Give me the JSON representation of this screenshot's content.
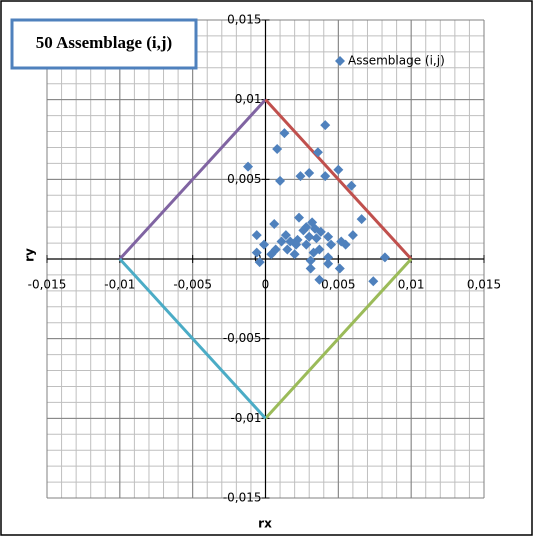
{
  "chart_data": {
    "type": "scatter",
    "title": "50 Assemblage (i,j)",
    "x_label": "rx",
    "y_label": "ry",
    "xlim": [
      -0.015,
      0.015
    ],
    "ylim": [
      -0.015,
      0.015
    ],
    "xticks": [
      {
        "value": -0.015,
        "label": "-0,015"
      },
      {
        "value": -0.01,
        "label": "-0,01"
      },
      {
        "value": -0.005,
        "label": "-0,005"
      },
      0,
      {
        "value": 0.005,
        "label": "0,005"
      },
      {
        "value": 0.01,
        "label": "0,01"
      },
      {
        "value": 0.015,
        "label": "0,015"
      }
    ],
    "yticks": [
      {
        "value": -0.015,
        "label": "-0,015"
      },
      {
        "value": -0.01,
        "label": "-0,01"
      },
      {
        "value": -0.005,
        "label": "-0,005"
      },
      0,
      {
        "value": 0.005,
        "label": "0,005"
      },
      {
        "value": 0.01,
        "label": "0,01"
      },
      {
        "value": 0.015,
        "label": "0,015"
      }
    ],
    "grid": true,
    "minor_grid_step": 0.001,
    "legend": "upper right",
    "series": [
      {
        "name": "Assemblage (i,j)",
        "color": "#4f81bd",
        "x": [
          -0.0012,
          0.0008,
          0.0013,
          0.0041,
          0.0036,
          0.005,
          0.001,
          0.0024,
          0.003,
          0.0041,
          0.0059,
          0.0066,
          0.006,
          0.0055,
          0.0052,
          0.0082,
          0.0074,
          0.0051,
          0.0043,
          0.0043,
          0.0037,
          0.0035,
          0.0028,
          0.0023,
          0.0032,
          0.0028,
          0.0022,
          0.0017,
          0.0014,
          0.0015,
          0.0006,
          0.0007,
          0.0004,
          -0.0001,
          -0.0006,
          -0.0006,
          -0.0004,
          0.0011,
          0.002,
          0.0031,
          0.0033,
          0.0038,
          0.0043,
          0.0045,
          0.003,
          0.0034,
          0.0026,
          0.0021,
          0.0037,
          0.0031
        ],
        "y": [
          0.0058,
          0.0069,
          0.0079,
          0.0084,
          0.0067,
          0.0056,
          0.0049,
          0.0052,
          0.0054,
          0.0052,
          0.0046,
          0.0025,
          0.0015,
          0.0009,
          0.0011,
          0.0001,
          -0.0014,
          -0.0006,
          0.0001,
          -0.0003,
          0.0006,
          0.0013,
          0.002,
          0.0026,
          0.0023,
          0.0009,
          0.0012,
          0.0011,
          0.0015,
          0.0006,
          0.0022,
          0.0006,
          0.0003,
          0.0009,
          0.0015,
          0.0004,
          -0.0002,
          0.0011,
          0.0003,
          -0.0001,
          0.0004,
          0.0017,
          0.0014,
          0.0009,
          0.0014,
          0.0019,
          0.0018,
          0.0009,
          -0.0013,
          -0.0006
        ]
      }
    ],
    "boundary_lines": [
      {
        "color": "#8064a2",
        "x": [
          -0.01,
          0
        ],
        "y": [
          0,
          0.01
        ]
      },
      {
        "color": "#c0504d",
        "x": [
          0,
          0.01
        ],
        "y": [
          0.01,
          0
        ]
      },
      {
        "color": "#9bbb59",
        "x": [
          0.01,
          0
        ],
        "y": [
          0,
          -0.01
        ]
      },
      {
        "color": "#4bacc6",
        "x": [
          0,
          -0.01
        ],
        "y": [
          -0.01,
          0
        ]
      }
    ]
  }
}
